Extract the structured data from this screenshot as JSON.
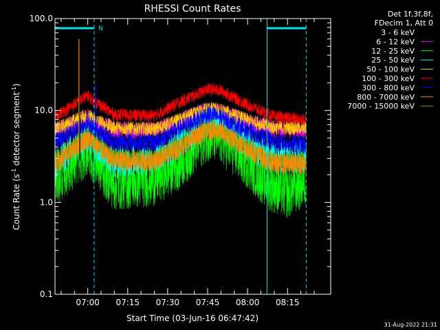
{
  "chart_data": {
    "type": "line",
    "title": "RHESSI Count Rates",
    "xlabel": "Start Time (03-Jun-16 06:47:42)",
    "ylabel": "Count Rate (s",
    "ylabel_sup": "-1",
    "ylabel_tail": " detector segment",
    "ylabel_sup2": "-1",
    "ylabel_end": ")",
    "yscale": "log",
    "ylim": [
      0.1,
      100.0
    ],
    "y_ticks": [
      "0.1",
      "1.0",
      "10.0",
      "100.0"
    ],
    "x_ticks": [
      "07:00",
      "07:15",
      "07:30",
      "07:45",
      "08:00",
      "08:15"
    ],
    "x_tick_minutes": [
      420,
      435,
      450,
      465,
      480,
      495
    ],
    "xlim_minutes": [
      407.7,
      511.2
    ],
    "legend_header": [
      "Det 1f,3f,8f,",
      "FDecim 1, Att 0"
    ],
    "legend_position": "right",
    "timestamp": "31-Aug-2022 21:31",
    "flags": [
      {
        "label": "N",
        "start_min": 407.7,
        "end_min": 422.4,
        "color": "#00e5ee"
      },
      {
        "label": "",
        "start_min": 487.3,
        "end_min": 502.0,
        "color": "#00e5ee"
      }
    ],
    "series": [
      {
        "name": "3 - 6 keV",
        "color": "#000000",
        "baseline": [
          [
            407.7,
            1.6
          ],
          [
            420,
            3.4
          ],
          [
            422,
            3.0
          ],
          [
            430,
            1.5
          ],
          [
            445,
            1.5
          ],
          [
            455,
            2.6
          ],
          [
            465,
            5.2
          ],
          [
            470,
            4.8
          ],
          [
            480,
            2.6
          ],
          [
            488,
            1.5
          ],
          [
            495,
            1.3
          ],
          [
            502,
            1.6
          ]
        ],
        "spread": 0.35
      },
      {
        "name": "6 - 12 keV",
        "color": "#ff00ff",
        "baseline": [
          [
            407.7,
            6.0
          ],
          [
            420,
            8.5
          ],
          [
            422,
            7.5
          ],
          [
            430,
            6.2
          ],
          [
            445,
            6.0
          ],
          [
            455,
            7.8
          ],
          [
            465,
            10.0
          ],
          [
            470,
            9.6
          ],
          [
            480,
            7.5
          ],
          [
            490,
            6.2
          ],
          [
            502,
            6.2
          ]
        ],
        "spread": 0.1
      },
      {
        "name": "12 - 25 keV",
        "color": "#00ff00",
        "baseline": [
          [
            407.7,
            1.8
          ],
          [
            420,
            3.8
          ],
          [
            422,
            3.2
          ],
          [
            430,
            1.6
          ],
          [
            445,
            1.8
          ],
          [
            455,
            2.8
          ],
          [
            465,
            5.6
          ],
          [
            470,
            5.0
          ],
          [
            480,
            2.8
          ],
          [
            488,
            1.6
          ],
          [
            495,
            1.3
          ],
          [
            502,
            1.8
          ]
        ],
        "spread": 0.3
      },
      {
        "name": "25 - 50 keV",
        "color": "#00ffff",
        "baseline": [
          [
            407.7,
            2.6
          ],
          [
            420,
            5.2
          ],
          [
            422,
            4.5
          ],
          [
            430,
            2.8
          ],
          [
            445,
            3.0
          ],
          [
            455,
            4.5
          ],
          [
            465,
            7.5
          ],
          [
            470,
            6.8
          ],
          [
            480,
            4.2
          ],
          [
            490,
            3.0
          ],
          [
            502,
            3.2
          ]
        ],
        "spread": 0.18
      },
      {
        "name": "50 - 100 keV",
        "color": "#ffcc00",
        "baseline": [
          [
            407.7,
            6.2
          ],
          [
            420,
            9.0
          ],
          [
            422,
            8.0
          ],
          [
            430,
            6.5
          ],
          [
            445,
            6.2
          ],
          [
            455,
            8.0
          ],
          [
            465,
            10.5
          ],
          [
            470,
            10.0
          ],
          [
            480,
            7.8
          ],
          [
            490,
            6.5
          ],
          [
            502,
            6.5
          ]
        ],
        "spread": 0.08
      },
      {
        "name": "100 - 300 keV",
        "color": "#ff0000",
        "baseline": [
          [
            407.7,
            8.5
          ],
          [
            420,
            14.5
          ],
          [
            422,
            13.0
          ],
          [
            430,
            9.0
          ],
          [
            445,
            8.8
          ],
          [
            455,
            12.5
          ],
          [
            465,
            17.0
          ],
          [
            470,
            16.5
          ],
          [
            480,
            11.5
          ],
          [
            490,
            8.5
          ],
          [
            502,
            8.0
          ]
        ],
        "spread": 0.07
      },
      {
        "name": "300 - 800 keV",
        "color": "#0000ff",
        "baseline": [
          [
            407.7,
            4.5
          ],
          [
            420,
            7.5
          ],
          [
            422,
            6.5
          ],
          [
            430,
            4.5
          ],
          [
            445,
            4.5
          ],
          [
            455,
            6.5
          ],
          [
            465,
            9.0
          ],
          [
            470,
            8.5
          ],
          [
            480,
            6.0
          ],
          [
            490,
            4.5
          ],
          [
            502,
            4.2
          ]
        ],
        "spread": 0.1
      },
      {
        "name": "800 - 7000 keV",
        "color": "#ff8800",
        "baseline": [
          [
            407.7,
            2.6
          ],
          [
            420,
            5.0
          ],
          [
            422,
            4.5
          ],
          [
            430,
            2.8
          ],
          [
            445,
            2.8
          ],
          [
            455,
            4.0
          ],
          [
            465,
            6.2
          ],
          [
            470,
            5.8
          ],
          [
            480,
            3.8
          ],
          [
            490,
            2.6
          ],
          [
            502,
            2.6
          ]
        ],
        "spread": 0.12
      },
      {
        "name": "7000 - 15000 keV",
        "color": "#66aa00",
        "baseline": [
          [
            407.7,
            2.8
          ],
          [
            420,
            5.2
          ],
          [
            422,
            4.6
          ],
          [
            430,
            3.0
          ],
          [
            445,
            3.0
          ],
          [
            455,
            4.2
          ],
          [
            465,
            6.4
          ],
          [
            470,
            6.0
          ],
          [
            480,
            4.0
          ],
          [
            490,
            2.8
          ],
          [
            502,
            2.8
          ]
        ],
        "spread": 0.1
      }
    ],
    "spikes": [
      {
        "series": "800 - 7000 keV",
        "x_min": 416.7,
        "y": 60.0
      },
      {
        "series": "300 - 800 keV",
        "x_min": 423.0,
        "y": 19.0
      },
      {
        "series": "3 - 6 keV",
        "x_min": 417.0,
        "y": 15.0
      }
    ]
  }
}
